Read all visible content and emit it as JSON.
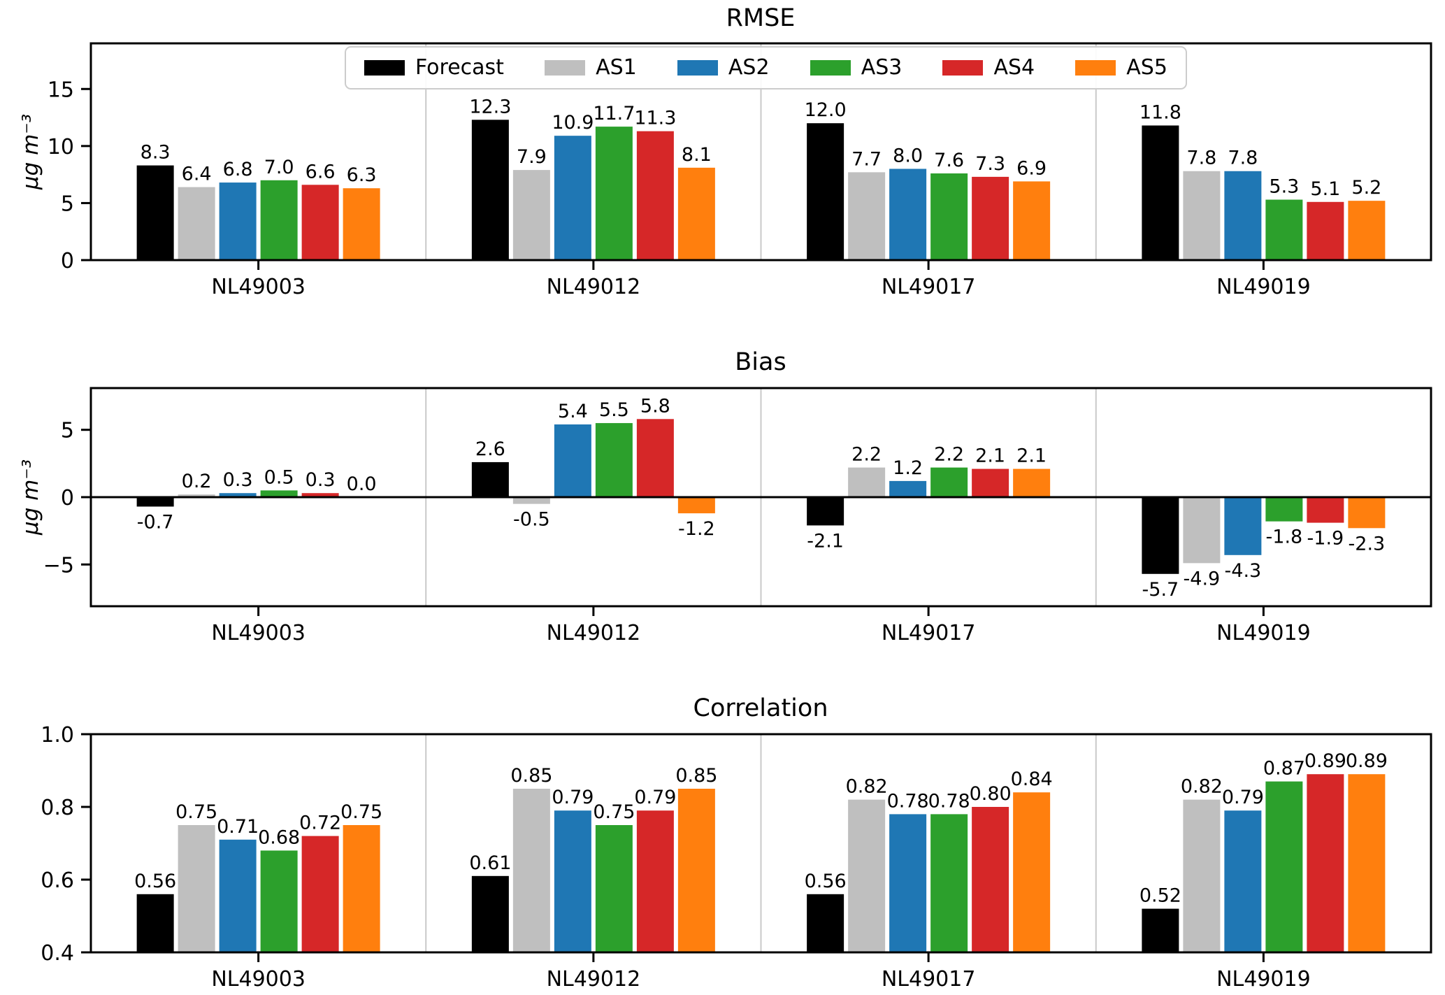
{
  "figure": {
    "background": "#ffffff"
  },
  "legend": {
    "items": [
      {
        "label": "Forecast",
        "color": "#000000"
      },
      {
        "label": "AS1",
        "color": "#bfbfbf"
      },
      {
        "label": "AS2",
        "color": "#1f77b4"
      },
      {
        "label": "AS3",
        "color": "#2ca02c"
      },
      {
        "label": "AS4",
        "color": "#d62728"
      },
      {
        "label": "AS5",
        "color": "#ff7f0e"
      }
    ]
  },
  "chart_data": [
    {
      "type": "bar",
      "title": "RMSE",
      "ylabel": "µg m⁻³",
      "categories": [
        "NL49003",
        "NL49012",
        "NL49017",
        "NL49019"
      ],
      "series": [
        {
          "name": "Forecast",
          "color": "#000000",
          "values": [
            8.3,
            12.3,
            12.0,
            11.8
          ]
        },
        {
          "name": "AS1",
          "color": "#bfbfbf",
          "values": [
            6.4,
            7.9,
            7.7,
            7.8
          ]
        },
        {
          "name": "AS2",
          "color": "#1f77b4",
          "values": [
            6.8,
            10.9,
            8.0,
            7.8
          ]
        },
        {
          "name": "AS3",
          "color": "#2ca02c",
          "values": [
            7.0,
            11.7,
            7.6,
            5.3
          ]
        },
        {
          "name": "AS4",
          "color": "#d62728",
          "values": [
            6.6,
            11.3,
            7.3,
            5.1
          ]
        },
        {
          "name": "AS5",
          "color": "#ff7f0e",
          "values": [
            6.3,
            8.1,
            6.9,
            5.2
          ]
        }
      ],
      "ylim": [
        0,
        19
      ],
      "yticks": [
        {
          "value": 0,
          "label": "0"
        },
        {
          "value": 5,
          "label": "5"
        },
        {
          "value": 10,
          "label": "10"
        },
        {
          "value": 15,
          "label": "15"
        }
      ],
      "value_decimals": 1,
      "grid": "group-separators",
      "legend_position": "upper center"
    },
    {
      "type": "bar",
      "title": "Bias",
      "ylabel": "µg m⁻³",
      "categories": [
        "NL49003",
        "NL49012",
        "NL49017",
        "NL49019"
      ],
      "series": [
        {
          "name": "Forecast",
          "color": "#000000",
          "values": [
            -0.7,
            2.6,
            -2.1,
            -5.7
          ]
        },
        {
          "name": "AS1",
          "color": "#bfbfbf",
          "values": [
            0.2,
            -0.5,
            2.2,
            -4.9
          ]
        },
        {
          "name": "AS2",
          "color": "#1f77b4",
          "values": [
            0.3,
            5.4,
            1.2,
            -4.3
          ]
        },
        {
          "name": "AS3",
          "color": "#2ca02c",
          "values": [
            0.5,
            5.5,
            2.2,
            -1.8
          ]
        },
        {
          "name": "AS4",
          "color": "#d62728",
          "values": [
            0.3,
            5.8,
            2.1,
            -1.9
          ]
        },
        {
          "name": "AS5",
          "color": "#ff7f0e",
          "values": [
            0.0,
            -1.2,
            2.1,
            -2.3
          ]
        }
      ],
      "ylim": [
        -8.1,
        8.1
      ],
      "yticks": [
        {
          "value": -5,
          "label": "−5"
        },
        {
          "value": 0,
          "label": "0"
        },
        {
          "value": 5,
          "label": "5"
        }
      ],
      "value_decimals": 1,
      "grid": "group-separators",
      "zero_line": true
    },
    {
      "type": "bar",
      "title": "Correlation",
      "ylabel": "",
      "categories": [
        "NL49003",
        "NL49012",
        "NL49017",
        "NL49019"
      ],
      "series": [
        {
          "name": "Forecast",
          "color": "#000000",
          "values": [
            0.56,
            0.61,
            0.56,
            0.52
          ]
        },
        {
          "name": "AS1",
          "color": "#bfbfbf",
          "values": [
            0.75,
            0.85,
            0.82,
            0.82
          ]
        },
        {
          "name": "AS2",
          "color": "#1f77b4",
          "values": [
            0.71,
            0.79,
            0.78,
            0.79
          ]
        },
        {
          "name": "AS3",
          "color": "#2ca02c",
          "values": [
            0.68,
            0.75,
            0.78,
            0.87
          ]
        },
        {
          "name": "AS4",
          "color": "#d62728",
          "values": [
            0.72,
            0.79,
            0.8,
            0.89
          ]
        },
        {
          "name": "AS5",
          "color": "#ff7f0e",
          "values": [
            0.75,
            0.85,
            0.84,
            0.89
          ]
        }
      ],
      "ylim": [
        0.4,
        1.0
      ],
      "yticks": [
        {
          "value": 0.4,
          "label": "0.4"
        },
        {
          "value": 0.6,
          "label": "0.6"
        },
        {
          "value": 0.8,
          "label": "0.8"
        },
        {
          "value": 1.0,
          "label": "1.0"
        }
      ],
      "value_decimals": 2,
      "grid": "group-separators"
    }
  ]
}
